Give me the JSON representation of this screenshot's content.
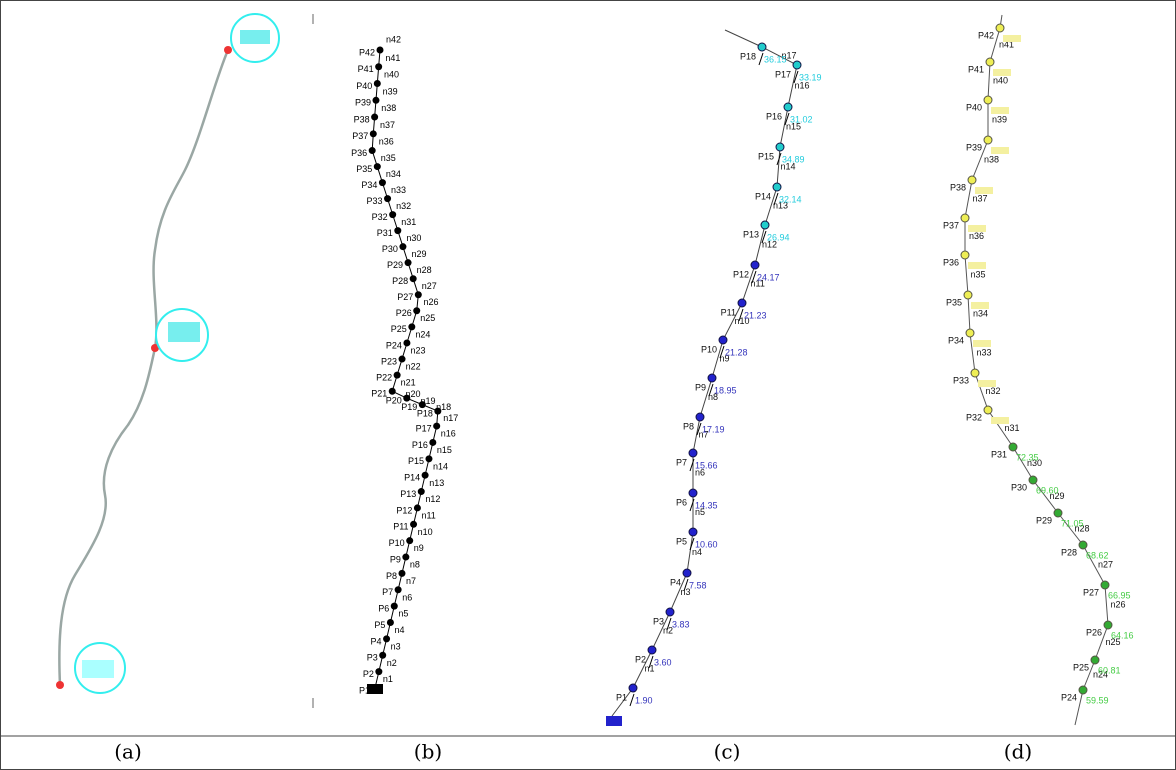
{
  "captions": [
    "(a)",
    "(b)",
    "(c)",
    "(d)"
  ],
  "panel_b": {
    "pipes": [
      "P1",
      "P2",
      "P3",
      "P4",
      "P5",
      "P6",
      "P7",
      "P8",
      "P9",
      "P10",
      "P11",
      "P12",
      "P13",
      "P14",
      "P15",
      "P16",
      "P17",
      "P18",
      "P19",
      "P20",
      "P21",
      "P22",
      "P23",
      "P24",
      "P25",
      "P26",
      "P27",
      "P28",
      "P29",
      "P30",
      "P31",
      "P32",
      "P33",
      "P34",
      "P35",
      "P36",
      "P37",
      "P38",
      "P39",
      "P40",
      "P41",
      "P42"
    ],
    "junctions": [
      "n1",
      "n2",
      "n3",
      "n4",
      "n5",
      "n6",
      "n7",
      "n8",
      "n9",
      "n10",
      "n11",
      "n12",
      "n13",
      "n14",
      "n15",
      "n16",
      "n17",
      "n18",
      "n19",
      "n20",
      "n21",
      "n22",
      "n23",
      "n24",
      "n25",
      "n26",
      "n27",
      "n28",
      "n29",
      "n30",
      "n31",
      "n32",
      "n33",
      "n34",
      "n35",
      "n36",
      "n37",
      "n38",
      "n39",
      "n40",
      "n41",
      "n42"
    ]
  },
  "panel_c": {
    "pipes": [
      {
        "label": "P1",
        "value": "1.90"
      },
      {
        "label": "P2",
        "value": "3.60"
      },
      {
        "label": "P3",
        "value": "3.83"
      },
      {
        "label": "P4",
        "value": "7.58"
      },
      {
        "label": "P5",
        "value": "10.60"
      },
      {
        "label": "P6",
        "value": "14.35"
      },
      {
        "label": "P7",
        "value": "15.66"
      },
      {
        "label": "P8",
        "value": "17.19"
      },
      {
        "label": "P9",
        "value": "18.95"
      },
      {
        "label": "P10",
        "value": "21.28"
      },
      {
        "label": "P11",
        "value": "21.23"
      },
      {
        "label": "P12",
        "value": "24.17"
      },
      {
        "label": "P13",
        "value": "26.94"
      },
      {
        "label": "P14",
        "value": "32.14"
      },
      {
        "label": "P15",
        "value": "34.89"
      },
      {
        "label": "P16",
        "value": "31.02"
      },
      {
        "label": "P17",
        "value": "33.19"
      },
      {
        "label": "P18",
        "value": "36.15"
      }
    ],
    "junctions": [
      "n1",
      "n2",
      "n3",
      "n4",
      "n5",
      "n6",
      "n7",
      "n8",
      "n9",
      "n10",
      "n11",
      "n12",
      "n13",
      "n14",
      "n15",
      "n16",
      "n17"
    ]
  },
  "panel_d": {
    "pipes": [
      {
        "label": "P24",
        "value": "59.59"
      },
      {
        "label": "P25",
        "value": "60.81"
      },
      {
        "label": "P26",
        "value": "64.16"
      },
      {
        "label": "P27",
        "value": "66.95"
      },
      {
        "label": "P28",
        "value": "68.62"
      },
      {
        "label": "P29",
        "value": "71.05"
      },
      {
        "label": "P30",
        "value": "69.60"
      },
      {
        "label": "P31",
        "value": "72.35"
      },
      {
        "label": "P32"
      },
      {
        "label": "P33"
      },
      {
        "label": "P34"
      },
      {
        "label": "P35"
      },
      {
        "label": "P36"
      },
      {
        "label": "P37"
      },
      {
        "label": "P38"
      },
      {
        "label": "P39"
      },
      {
        "label": "P40"
      },
      {
        "label": "P41"
      },
      {
        "label": "P42"
      }
    ],
    "junctions": [
      "n24",
      "n25",
      "n26",
      "n27",
      "n28",
      "n29",
      "n30",
      "n31",
      "n32",
      "n33",
      "n34",
      "n35",
      "n36",
      "n37",
      "n38",
      "n39",
      "n40",
      "n41"
    ]
  }
}
